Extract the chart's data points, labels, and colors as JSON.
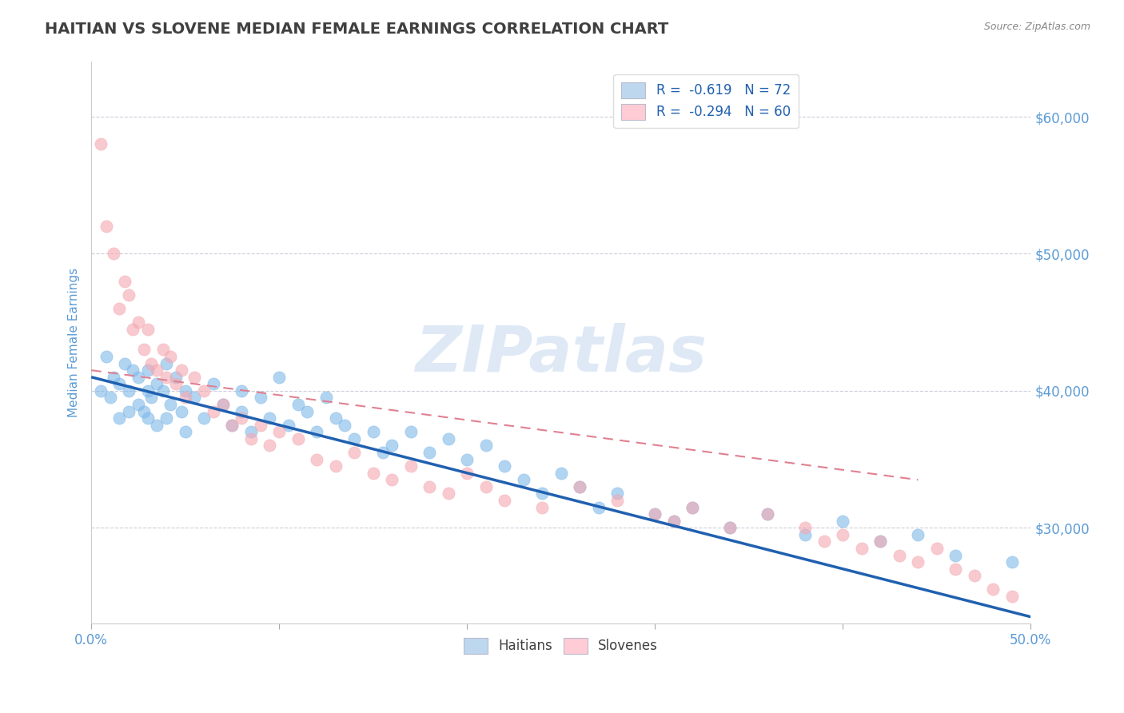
{
  "title": "HAITIAN VS SLOVENE MEDIAN FEMALE EARNINGS CORRELATION CHART",
  "source": "Source: ZipAtlas.com",
  "ylabel": "Median Female Earnings",
  "watermark": "ZIPatlas",
  "xlim": [
    0.0,
    0.5
  ],
  "ylim": [
    23000,
    64000
  ],
  "xticks": [
    0.0,
    0.1,
    0.2,
    0.3,
    0.4,
    0.5
  ],
  "xtick_labels_shown": [
    "0.0%",
    "",
    "",
    "",
    "",
    "50.0%"
  ],
  "yticks": [
    30000,
    40000,
    50000,
    60000
  ],
  "ytick_labels": [
    "$30,000",
    "$40,000",
    "$50,000",
    "$60,000"
  ],
  "blue_R": -0.619,
  "blue_N": 72,
  "pink_R": -0.294,
  "pink_N": 60,
  "blue_color": "#7DB8E8",
  "pink_color": "#F4A8B0",
  "blue_line_color": "#2060B0",
  "pink_line_color": "#E08090",
  "grid_color": "#C8C8D8",
  "title_color": "#404040",
  "tick_color": "#5B9BD5",
  "legend_blue_fill": "#BDD7EE",
  "legend_pink_fill": "#FFCCD5",
  "background_color": "#FFFFFF",
  "legend_label_blue": "Haitians",
  "legend_label_pink": "Slovenes",
  "blue_trend_x": [
    0.0,
    0.5
  ],
  "blue_trend_y": [
    41000,
    23500
  ],
  "pink_trend_x": [
    0.0,
    0.44
  ],
  "pink_trend_y": [
    41500,
    33500
  ],
  "haitians_x": [
    0.005,
    0.008,
    0.01,
    0.012,
    0.015,
    0.015,
    0.018,
    0.02,
    0.02,
    0.022,
    0.025,
    0.025,
    0.028,
    0.03,
    0.03,
    0.03,
    0.032,
    0.035,
    0.035,
    0.038,
    0.04,
    0.04,
    0.042,
    0.045,
    0.048,
    0.05,
    0.05,
    0.055,
    0.06,
    0.065,
    0.07,
    0.075,
    0.08,
    0.08,
    0.085,
    0.09,
    0.095,
    0.1,
    0.105,
    0.11,
    0.115,
    0.12,
    0.125,
    0.13,
    0.135,
    0.14,
    0.15,
    0.155,
    0.16,
    0.17,
    0.18,
    0.19,
    0.2,
    0.21,
    0.22,
    0.23,
    0.24,
    0.25,
    0.26,
    0.27,
    0.28,
    0.3,
    0.31,
    0.32,
    0.34,
    0.36,
    0.38,
    0.4,
    0.42,
    0.44,
    0.46,
    0.49
  ],
  "haitians_y": [
    40000,
    42500,
    39500,
    41000,
    40500,
    38000,
    42000,
    40000,
    38500,
    41500,
    39000,
    41000,
    38500,
    40000,
    38000,
    41500,
    39500,
    40500,
    37500,
    40000,
    38000,
    42000,
    39000,
    41000,
    38500,
    40000,
    37000,
    39500,
    38000,
    40500,
    39000,
    37500,
    40000,
    38500,
    37000,
    39500,
    38000,
    41000,
    37500,
    39000,
    38500,
    37000,
    39500,
    38000,
    37500,
    36500,
    37000,
    35500,
    36000,
    37000,
    35500,
    36500,
    35000,
    36000,
    34500,
    33500,
    32500,
    34000,
    33000,
    31500,
    32500,
    31000,
    30500,
    31500,
    30000,
    31000,
    29500,
    30500,
    29000,
    29500,
    28000,
    27500
  ],
  "slovenes_x": [
    0.005,
    0.008,
    0.012,
    0.015,
    0.018,
    0.02,
    0.022,
    0.025,
    0.028,
    0.03,
    0.032,
    0.035,
    0.038,
    0.04,
    0.042,
    0.045,
    0.048,
    0.05,
    0.055,
    0.06,
    0.065,
    0.07,
    0.075,
    0.08,
    0.085,
    0.09,
    0.095,
    0.1,
    0.11,
    0.12,
    0.13,
    0.14,
    0.15,
    0.16,
    0.17,
    0.18,
    0.19,
    0.2,
    0.21,
    0.22,
    0.24,
    0.26,
    0.28,
    0.3,
    0.31,
    0.32,
    0.34,
    0.36,
    0.38,
    0.39,
    0.4,
    0.41,
    0.42,
    0.43,
    0.44,
    0.45,
    0.46,
    0.47,
    0.48,
    0.49
  ],
  "slovenes_y": [
    58000,
    52000,
    50000,
    46000,
    48000,
    47000,
    44500,
    45000,
    43000,
    44500,
    42000,
    41500,
    43000,
    41000,
    42500,
    40500,
    41500,
    39500,
    41000,
    40000,
    38500,
    39000,
    37500,
    38000,
    36500,
    37500,
    36000,
    37000,
    36500,
    35000,
    34500,
    35500,
    34000,
    33500,
    34500,
    33000,
    32500,
    34000,
    33000,
    32000,
    31500,
    33000,
    32000,
    31000,
    30500,
    31500,
    30000,
    31000,
    30000,
    29000,
    29500,
    28500,
    29000,
    28000,
    27500,
    28500,
    27000,
    26500,
    25500,
    25000
  ]
}
